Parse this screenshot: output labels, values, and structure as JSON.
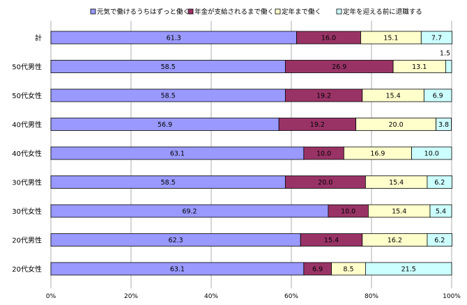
{
  "chart_data": {
    "type": "bar",
    "orientation": "horizontal",
    "stacked": true,
    "percent": true,
    "categories": [
      "計",
      "50代男性",
      "50代女性",
      "40代男性",
      "40代女性",
      "30代男性",
      "30代女性",
      "20代男性",
      "20代女性"
    ],
    "series": [
      {
        "name": "元気で働けるうちはずっと働く",
        "color": "#9999ff",
        "values": [
          61.3,
          58.5,
          58.5,
          56.9,
          63.1,
          58.5,
          69.2,
          62.3,
          63.1
        ]
      },
      {
        "name": "年金が支給されるまで働く",
        "color": "#993366",
        "values": [
          16.0,
          26.9,
          19.2,
          19.2,
          10.0,
          20.0,
          10.0,
          15.4,
          6.9
        ]
      },
      {
        "name": "定年まで働く",
        "color": "#ffffcc",
        "values": [
          15.1,
          13.1,
          15.4,
          20.0,
          16.9,
          15.4,
          15.4,
          16.2,
          8.5
        ]
      },
      {
        "name": "定年を迎える前に退職する",
        "color": "#ccffff",
        "values": [
          7.7,
          1.5,
          6.9,
          3.8,
          10.0,
          6.2,
          5.4,
          6.2,
          21.5
        ]
      }
    ],
    "labels": [
      [
        "61.3",
        "16.0",
        "15.1",
        "7.7"
      ],
      [
        "58.5",
        "26.9",
        "13.1",
        "1.5"
      ],
      [
        "58.5",
        "19.2",
        "15.4",
        "6.9"
      ],
      [
        "56.9",
        "19.2",
        "20.0",
        "3.8"
      ],
      [
        "63.1",
        "10.0",
        "16.9",
        "10.0"
      ],
      [
        "58.5",
        "20.0",
        "15.4",
        "6.2"
      ],
      [
        "69.2",
        "10.0",
        "15.4",
        "5.4"
      ],
      [
        "62.3",
        "15.4",
        "16.2",
        "6.2"
      ],
      [
        "63.1",
        "6.9",
        "8.5",
        "21.5"
      ]
    ],
    "outside_label": {
      "row": 1,
      "series": 3
    },
    "x_ticks": [
      "0%",
      "20%",
      "40%",
      "60%",
      "80%",
      "100%"
    ],
    "xlim": [
      0,
      100
    ],
    "grid": "vertical",
    "legend_position": "top"
  }
}
